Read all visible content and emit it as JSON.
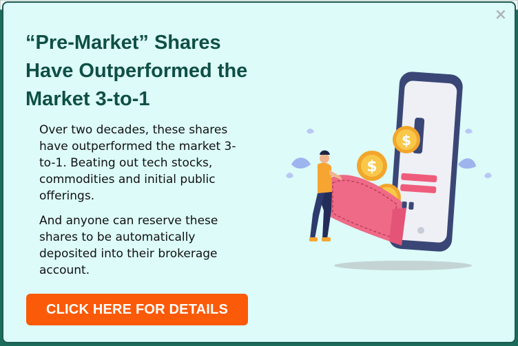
{
  "popup": {
    "close_label": "×",
    "headline": "“Pre-Market” Shares Have Outperformed the Market 3-to-1",
    "paragraphs": [
      "Over two decades, these shares have outperformed the market 3-to-1. Beating out tech stocks, commodities and initial public offerings.",
      "And anyone can reserve these shares to be automatically deposited into their brokerage account."
    ],
    "cta_label": "CLICK HERE FOR DETAILS",
    "coin_symbol": "$"
  },
  "colors": {
    "background_panel": "#dcfbf9",
    "headline": "#0f4f45",
    "cta": "#fb5a08",
    "border": "#1a5c50"
  },
  "icons": {
    "close": "close-icon",
    "illustration": "phone-wallet-coins-illustration"
  }
}
